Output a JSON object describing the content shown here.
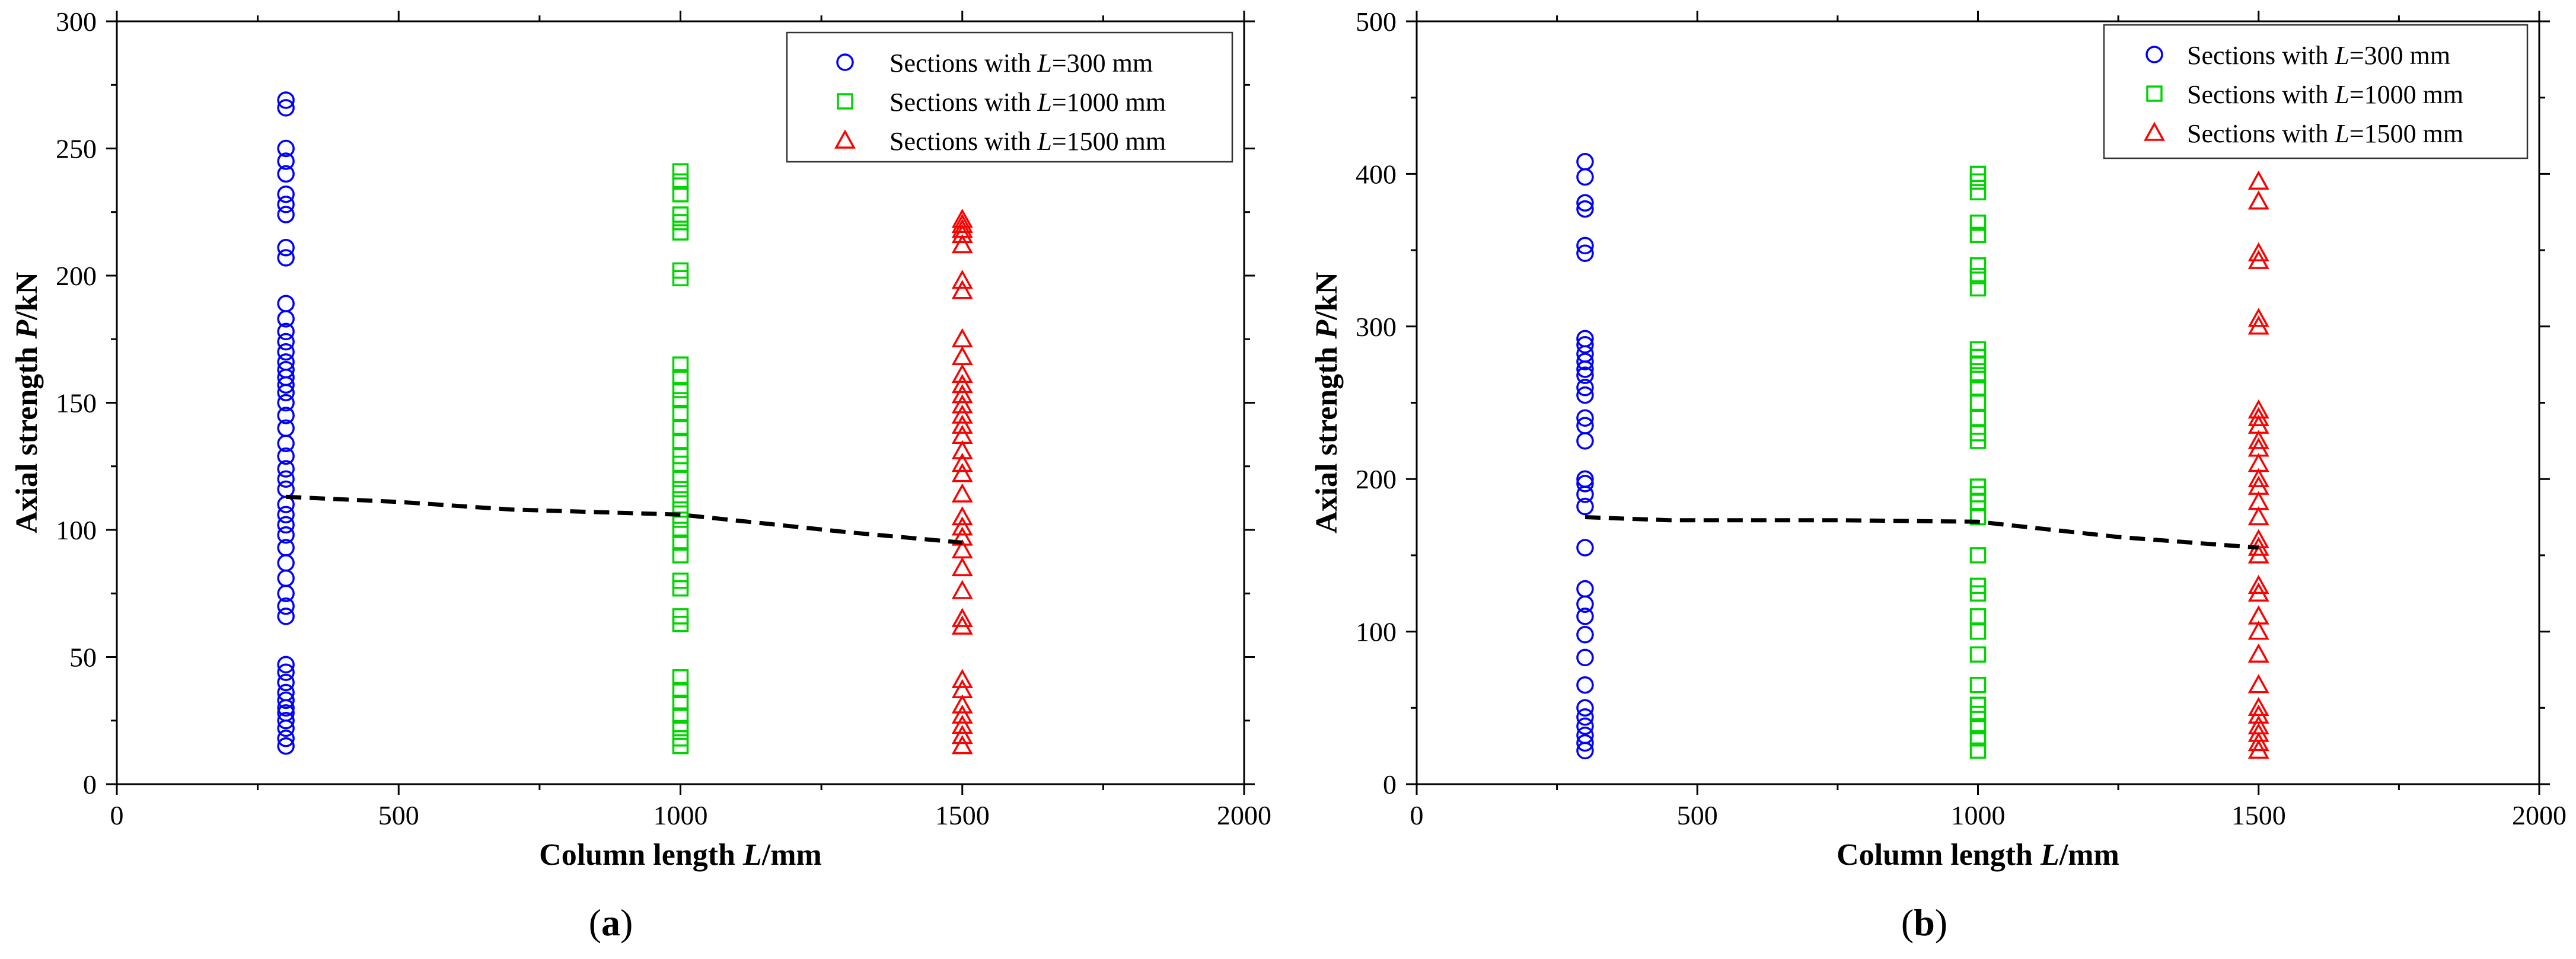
{
  "colors": {
    "L300": "#0000ff",
    "L1000": "#00d400",
    "L1500": "#ff0000",
    "trend": "#000000",
    "axis": "#000000"
  },
  "chart_data": [
    {
      "panel_label": "(a)",
      "panel_letter": "a",
      "type": "scatter",
      "xlabel": "Column length L/mm",
      "xlabel_prefix": "Column length ",
      "xlabel_var": "L",
      "xlabel_unit": "/mm",
      "ylabel": "Axial strength P/kN",
      "ylabel_prefix": "Axial strength ",
      "ylabel_var": "P",
      "ylabel_unit": "/kN",
      "xlim": [
        0,
        2000
      ],
      "ylim": [
        0,
        300
      ],
      "xticks": [
        0,
        500,
        1000,
        1500,
        2000
      ],
      "yticks": [
        0,
        50,
        100,
        150,
        200,
        250,
        300
      ],
      "legend_position": "top-right",
      "series": [
        {
          "name": "Sections with L=300 mm",
          "legend_prefix": "Sections with ",
          "legend_var": "L",
          "legend_suffix": "=300 mm",
          "marker": "circle",
          "color_key": "L300",
          "x": 300,
          "values": [
            15,
            18,
            22,
            25,
            28,
            30,
            33,
            36,
            40,
            44,
            47,
            66,
            70,
            75,
            81,
            87,
            93,
            98,
            102,
            106,
            110,
            116,
            120,
            124,
            129,
            134,
            140,
            145,
            150,
            154,
            157,
            160,
            163,
            166,
            170,
            174,
            178,
            183,
            189,
            207,
            211,
            224,
            228,
            232,
            240,
            245,
            250,
            266,
            269
          ]
        },
        {
          "name": "Sections with L=1000 mm",
          "legend_prefix": "Sections with ",
          "legend_var": "L",
          "legend_suffix": "=1000 mm",
          "marker": "square",
          "color_key": "L1000",
          "x": 1000,
          "values": [
            15,
            18,
            22,
            27,
            32,
            37,
            42,
            63,
            66,
            77,
            80,
            90,
            95,
            100,
            104,
            108,
            112,
            116,
            120,
            126,
            129,
            135,
            140,
            146,
            151,
            155,
            160,
            165,
            199,
            202,
            217,
            221,
            224,
            232,
            237,
            241
          ]
        },
        {
          "name": "Sections with L=1500 mm",
          "legend_prefix": "Sections with ",
          "legend_var": "L",
          "legend_suffix": "=1500 mm",
          "marker": "triangle",
          "color_key": "L1500",
          "x": 1500,
          "values": [
            15,
            19,
            23,
            27,
            31,
            37,
            41,
            62,
            65,
            76,
            85,
            92,
            97,
            101,
            105,
            114,
            122,
            126,
            131,
            137,
            141,
            145,
            149,
            153,
            157,
            161,
            168,
            175,
            194,
            198,
            212,
            216,
            218,
            220,
            222
          ]
        }
      ],
      "trend": {
        "name": "mean trend",
        "style": "dashed",
        "x": [
          300,
          500,
          700,
          1000,
          1300,
          1500
        ],
        "y": [
          113,
          111,
          108,
          106,
          99,
          95
        ]
      }
    },
    {
      "panel_label": "(b)",
      "panel_letter": "b",
      "type": "scatter",
      "xlabel": "Column length L/mm",
      "xlabel_prefix": "Column length ",
      "xlabel_var": "L",
      "xlabel_unit": "/mm",
      "ylabel": "Axial strength P/kN",
      "ylabel_prefix": "Axial strength ",
      "ylabel_var": "P",
      "ylabel_unit": "/kN",
      "xlim": [
        0,
        2000
      ],
      "ylim": [
        0,
        500
      ],
      "xticks": [
        0,
        500,
        1000,
        1500,
        2000
      ],
      "yticks": [
        0,
        100,
        200,
        300,
        400,
        500
      ],
      "legend_position": "top-right",
      "series": [
        {
          "name": "Sections with L=300 mm",
          "legend_prefix": "Sections with ",
          "legend_var": "L",
          "legend_suffix": "=300 mm",
          "marker": "circle",
          "color_key": "L300",
          "x": 300,
          "values": [
            22,
            27,
            32,
            38,
            44,
            50,
            65,
            83,
            98,
            110,
            118,
            128,
            155,
            182,
            190,
            197,
            200,
            225,
            235,
            240,
            255,
            260,
            268,
            272,
            277,
            282,
            288,
            292,
            348,
            353,
            377,
            381,
            398,
            408
          ]
        },
        {
          "name": "Sections with L=1000 mm",
          "legend_prefix": "Sections with ",
          "legend_var": "L",
          "legend_suffix": "=1000 mm",
          "marker": "square",
          "color_key": "L1000",
          "x": 1000,
          "values": [
            22,
            30,
            38,
            46,
            52,
            65,
            85,
            100,
            110,
            125,
            130,
            150,
            175,
            185,
            190,
            195,
            225,
            230,
            240,
            250,
            260,
            268,
            275,
            280,
            285,
            325,
            333,
            340,
            360,
            368,
            388,
            395,
            400
          ]
        },
        {
          "name": "Sections with L=1500 mm",
          "legend_prefix": "Sections with ",
          "legend_var": "L",
          "legend_suffix": "=1500 mm",
          "marker": "triangle",
          "color_key": "L1500",
          "x": 1500,
          "values": [
            22,
            27,
            33,
            38,
            45,
            50,
            65,
            85,
            100,
            110,
            125,
            130,
            150,
            155,
            160,
            175,
            185,
            195,
            200,
            210,
            220,
            225,
            235,
            240,
            245,
            300,
            305,
            343,
            348,
            382,
            395
          ]
        }
      ],
      "trend": {
        "name": "mean trend",
        "style": "dashed",
        "x": [
          300,
          450,
          750,
          1000,
          1250,
          1500
        ],
        "y": [
          175,
          173,
          173,
          172,
          162,
          155
        ]
      }
    }
  ]
}
